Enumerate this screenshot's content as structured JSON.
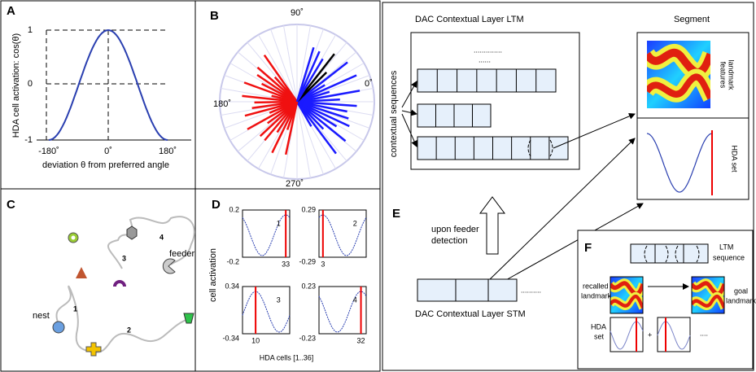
{
  "panel_a": {
    "label": "A",
    "y_label": "HDA cell activation: cos(θ)",
    "y_ticks": [
      1,
      0,
      -1
    ],
    "x_ticks": [
      "-180˚",
      "0˚",
      "180˚"
    ],
    "x_label": "deviation θ from preferred angle"
  },
  "panel_b": {
    "label": "B",
    "angles": [
      "90˚",
      "0˚",
      "180˚",
      "270˚"
    ]
  },
  "panel_c": {
    "label": "C",
    "nest": "nest",
    "feeder": "feeder",
    "steps": [
      1,
      2,
      3,
      4
    ]
  },
  "panel_d": {
    "label": "D",
    "y_label": "cell activation",
    "x_label": "HDA cells [1..36]",
    "plots": [
      {
        "top": 0.2,
        "bottom": -0.2,
        "index": 1,
        "cell": 33
      },
      {
        "top": 0.29,
        "bottom": -0.29,
        "index": 2,
        "cell": 3
      },
      {
        "top": 0.34,
        "bottom": -0.34,
        "index": 3,
        "cell": 10
      },
      {
        "top": 0.23,
        "bottom": -0.23,
        "index": 4,
        "cell": 32
      }
    ]
  },
  "panel_e": {
    "label": "E",
    "ltm_title": "DAC Contextual Layer LTM",
    "ltm_dots": [
      "..............",
      "......"
    ],
    "sequences": "contextual sequences",
    "segment": "Segment",
    "landmark": [
      "landmark",
      "features"
    ],
    "hda_set": "HDA set",
    "trigger": [
      "upon feeder",
      "detection"
    ],
    "stm_title": "DAC Contextual Layer STM",
    "stm_dots": ".........."
  },
  "panel_f": {
    "label": "F",
    "ltm": [
      "LTM",
      "sequence"
    ],
    "recalled": [
      "recalled",
      "landmark"
    ],
    "goal": [
      "goal",
      "landmark"
    ],
    "hda": [
      "HDA",
      "set"
    ],
    "plus": "+",
    "dots": "...."
  }
}
